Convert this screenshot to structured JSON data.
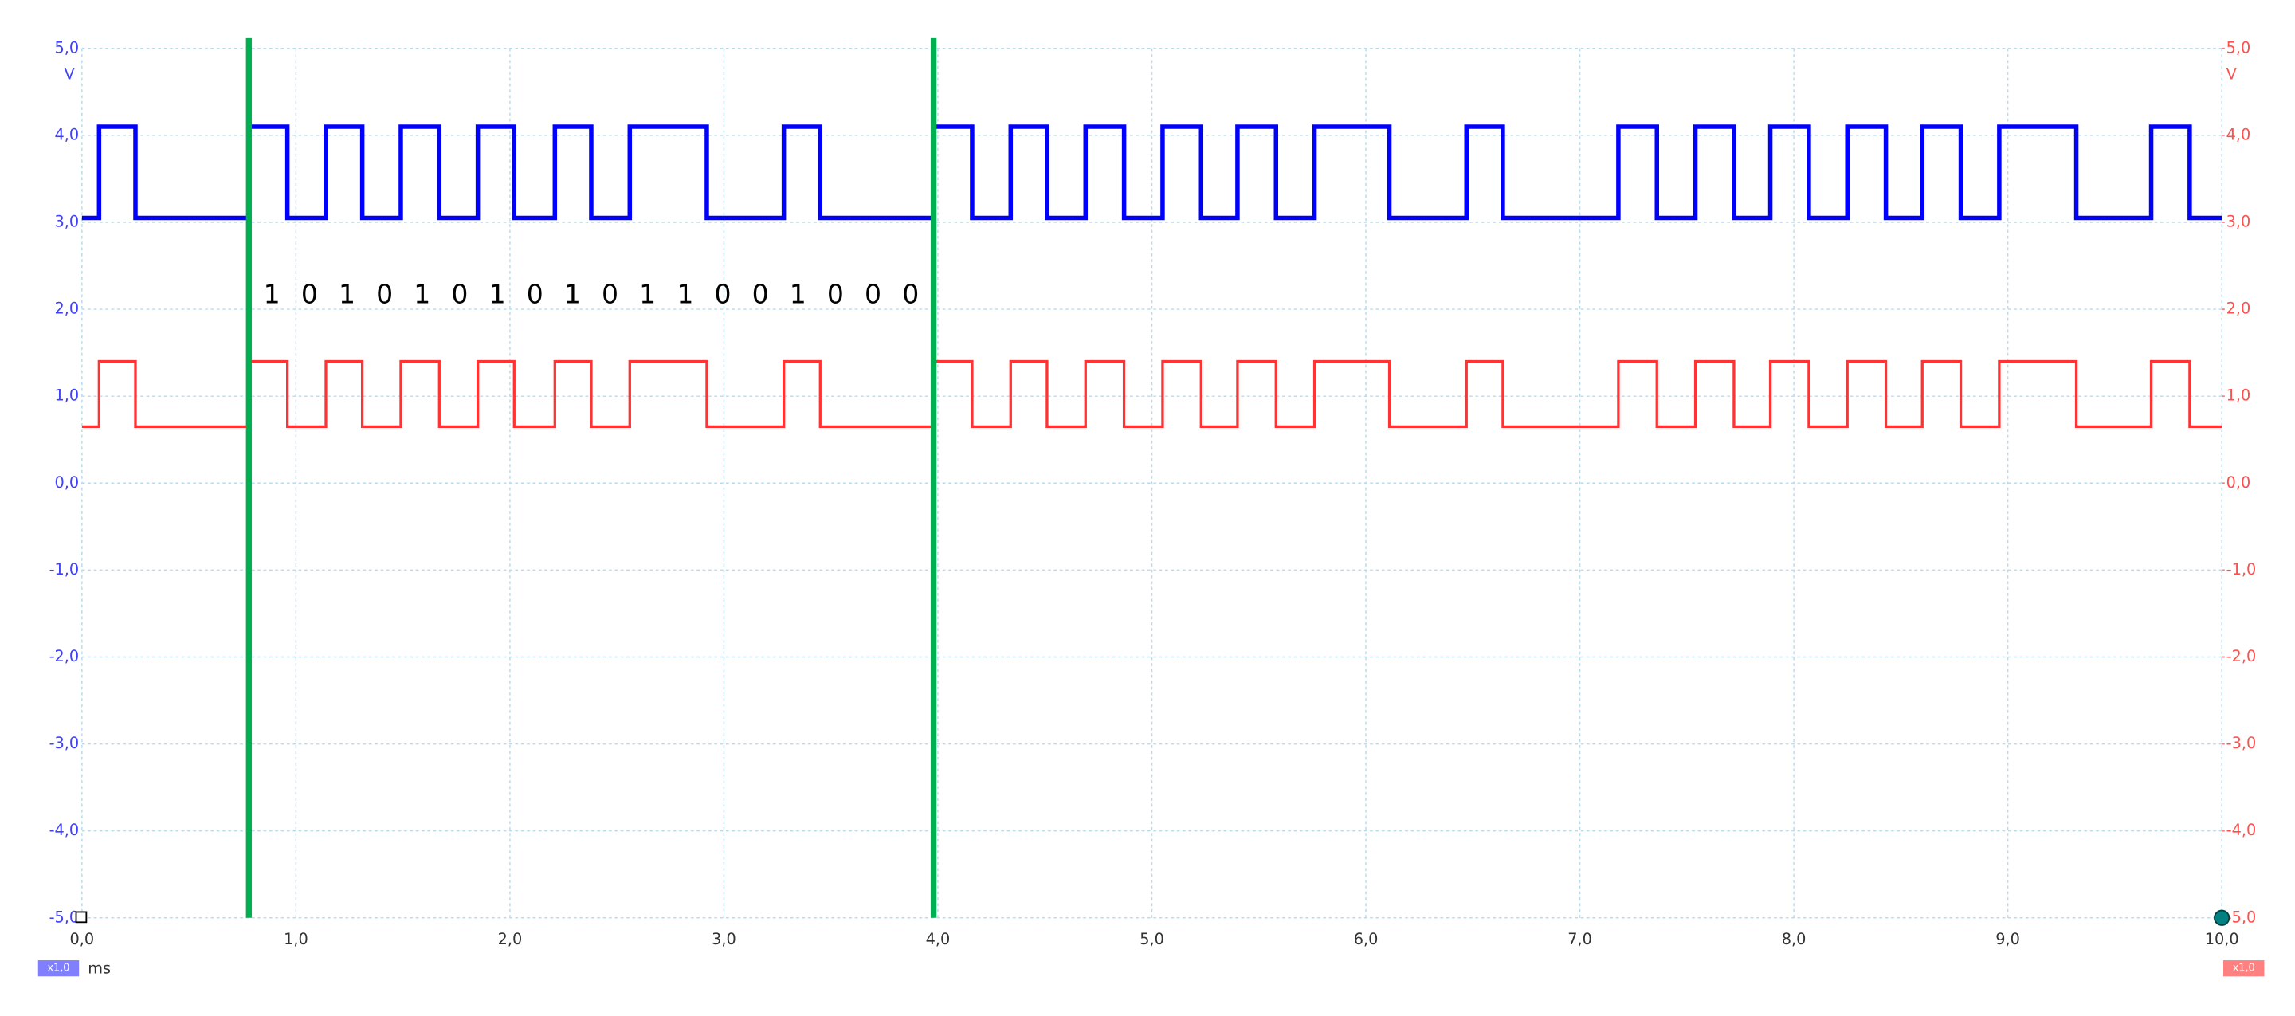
{
  "chart_data": {
    "type": "line",
    "x": [
      0,
      0.08,
      0.08,
      0.25,
      0.25,
      0.78,
      0.78,
      0.96,
      0.96,
      1.14,
      1.14,
      1.31,
      1.31,
      1.49,
      1.49,
      1.67,
      1.67,
      1.85,
      1.85,
      2.02,
      2.02,
      2.21,
      2.21,
      2.38,
      2.38,
      2.56,
      2.56,
      2.92,
      2.92,
      3.28,
      3.28,
      3.45,
      3.45,
      3.98,
      3.98,
      4.16,
      4.16,
      4.34,
      4.34,
      4.51,
      4.51,
      4.69,
      4.69,
      4.87,
      4.87,
      5.05,
      5.05,
      5.23,
      5.23,
      5.4,
      5.4,
      5.58,
      5.58,
      5.76,
      5.76,
      6.11,
      6.11,
      6.47,
      6.47,
      6.64,
      6.64,
      7.18,
      7.18,
      7.36,
      7.36,
      7.54,
      7.54,
      7.72,
      7.72,
      7.89,
      7.89,
      8.07,
      8.07,
      8.25,
      8.25,
      8.43,
      8.43,
      8.6,
      8.6,
      8.78,
      8.78,
      8.96,
      8.96,
      9.32,
      9.32,
      9.67,
      9.67,
      9.85,
      9.85,
      10
    ],
    "series": [
      {
        "color": "#0000ff",
        "values": [
          3.05,
          3.05,
          4.1,
          4.1,
          3.05,
          3.05,
          4.1,
          4.1,
          3.05,
          3.05,
          4.1,
          4.1,
          3.05,
          3.05,
          4.1,
          4.1,
          3.05,
          3.05,
          4.1,
          4.1,
          3.05,
          3.05,
          4.1,
          4.1,
          3.05,
          3.05,
          4.1,
          4.1,
          3.05,
          3.05,
          4.1,
          4.1,
          3.05,
          3.05,
          4.1,
          4.1,
          3.05,
          3.05,
          4.1,
          4.1,
          3.05,
          3.05,
          4.1,
          4.1,
          3.05,
          3.05,
          4.1,
          4.1,
          3.05,
          3.05,
          4.1,
          4.1,
          3.05,
          3.05,
          4.1,
          4.1,
          3.05,
          3.05,
          4.1,
          4.1,
          3.05,
          3.05,
          4.1,
          4.1,
          3.05,
          3.05,
          4.1,
          4.1,
          3.05,
          3.05,
          4.1,
          4.1,
          3.05,
          3.05,
          4.1,
          4.1,
          3.05,
          3.05,
          4.1,
          4.1,
          3.05,
          3.05,
          4.1,
          4.1,
          3.05,
          3.05,
          4.1,
          4.1,
          3.05,
          3.05
        ]
      },
      {
        "color": "#ff3333",
        "axis": "y2",
        "values": [
          0.65,
          0.65,
          1.4,
          1.4,
          0.65,
          0.65,
          1.4,
          1.4,
          0.65,
          0.65,
          1.4,
          1.4,
          0.65,
          0.65,
          1.4,
          1.4,
          0.65,
          0.65,
          1.4,
          1.4,
          0.65,
          0.65,
          1.4,
          1.4,
          0.65,
          0.65,
          1.4,
          1.4,
          0.65,
          0.65,
          1.4,
          1.4,
          0.65,
          0.65,
          1.4,
          1.4,
          0.65,
          0.65,
          1.4,
          1.4,
          0.65,
          0.65,
          1.4,
          1.4,
          0.65,
          0.65,
          1.4,
          1.4,
          0.65,
          0.65,
          1.4,
          1.4,
          0.65,
          0.65,
          1.4,
          1.4,
          0.65,
          0.65,
          1.4,
          1.4,
          0.65,
          0.65,
          1.4,
          1.4,
          0.65,
          0.65,
          1.4,
          1.4,
          0.65,
          0.65,
          1.4,
          1.4,
          0.65,
          0.65,
          1.4,
          1.4,
          0.65,
          0.65,
          1.4,
          1.4,
          0.65,
          0.65,
          1.4,
          1.4,
          0.65,
          0.65,
          1.4,
          1.4,
          0.65,
          0.65
        ]
      }
    ],
    "xlim": [
      0,
      10
    ],
    "xticks": [
      {
        "value": 0,
        "label": "0,0"
      },
      {
        "value": 1,
        "label": "1,0"
      },
      {
        "value": 2,
        "label": "2,0"
      },
      {
        "value": 3,
        "label": "3,0"
      },
      {
        "value": 4,
        "label": "4,0"
      },
      {
        "value": 5,
        "label": "5,0"
      },
      {
        "value": 6,
        "label": "6,0"
      },
      {
        "value": 7,
        "label": "7,0"
      },
      {
        "value": 8,
        "label": "8,0"
      },
      {
        "value": 9,
        "label": "9,0"
      },
      {
        "value": 10,
        "label": "10,0"
      }
    ],
    "xlabel": "ms",
    "ylim": [
      -5,
      5
    ],
    "yticks": [
      {
        "value": 5,
        "label": "5,0"
      },
      {
        "value": 4,
        "label": "4,0"
      },
      {
        "value": 3,
        "label": "3,0"
      },
      {
        "value": 2,
        "label": "2,0"
      },
      {
        "value": 1,
        "label": "1,0"
      },
      {
        "value": 0,
        "label": "0,0"
      },
      {
        "value": -1,
        "label": "-1,0"
      },
      {
        "value": -2,
        "label": "-2,0"
      },
      {
        "value": -3,
        "label": "-3,0"
      },
      {
        "value": -4,
        "label": "-4,0"
      },
      {
        "value": -5,
        "label": "-5,0"
      }
    ],
    "ylabel": "V",
    "y2lim": [
      -5,
      5
    ],
    "y2ticks": [
      {
        "value": 5,
        "label": "5,0"
      },
      {
        "value": 4,
        "label": "4,0"
      },
      {
        "value": 3,
        "label": "3,0"
      },
      {
        "value": 2,
        "label": "2,0"
      },
      {
        "value": 1,
        "label": "1,0"
      },
      {
        "value": 0,
        "label": "0,0"
      },
      {
        "value": -1,
        "label": "-1,0"
      },
      {
        "value": -2,
        "label": "-2,0"
      },
      {
        "value": -3,
        "label": "-3,0"
      },
      {
        "value": -4,
        "label": "-4,0"
      },
      {
        "value": -5,
        "label": "-5,0"
      }
    ],
    "y2label": "V",
    "scale_badges": [
      "x1,0",
      "x1,0"
    ],
    "cursors": [
      0.78,
      3.98
    ],
    "annotation": "1 0 1 0 1 0 1 0 1 0 1 1 0 0 1 0 0 0",
    "grid": true
  }
}
